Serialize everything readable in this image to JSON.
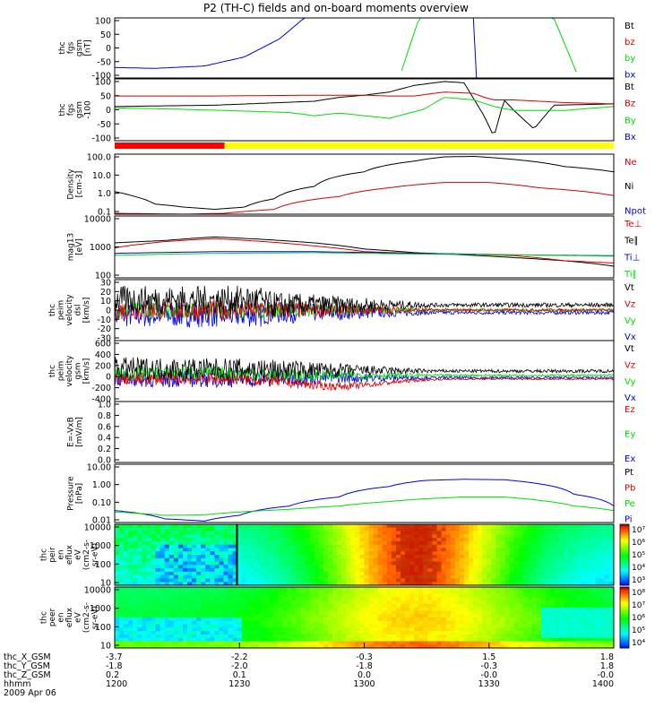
{
  "title": "P2 (TH-C) fields and on-board moments overview",
  "colors": {
    "black": "#000000",
    "red": "#d40000",
    "green": "#00dd00",
    "blue": "#0000dd",
    "yellow": "#ffff00",
    "bar_red": "#ff0000"
  },
  "chart_data": [
    {
      "id": "fgs",
      "type": "line",
      "ylabel": [
        "thc",
        "fgs",
        "gsm",
        "[nT]"
      ],
      "yticks": [
        "100",
        "50",
        "0",
        "-50",
        "-100"
      ],
      "ylim": [
        -100,
        100
      ],
      "yscale": "linear",
      "legend": [
        {
          "text": "Bt",
          "color": "black"
        },
        {
          "text": "bz",
          "color": "red"
        },
        {
          "text": "by",
          "color": "green"
        },
        {
          "text": "bx",
          "color": "blue"
        }
      ],
      "series": [
        {
          "name": "bx",
          "color": "blue",
          "x": [
            0,
            8,
            18,
            26,
            33,
            38,
            42,
            45,
            60,
            70,
            72.4,
            72.5,
            100
          ],
          "y": [
            -65,
            -68,
            -60,
            -30,
            30,
            100,
            100,
            100,
            100,
            100,
            100,
            -100,
            -100
          ]
        },
        {
          "name": "by",
          "color": "green",
          "x": [
            57,
            61,
            62,
            66,
            67,
            70,
            71,
            86,
            88,
            93
          ],
          "y": [
            -100,
            100,
            100,
            100,
            100,
            100,
            100,
            100,
            100,
            -100
          ]
        }
      ]
    },
    {
      "id": "fgs_dsl",
      "type": "line",
      "ylabel": [
        "thc",
        "fgs",
        "gsm",
        "-100"
      ],
      "yticks": [
        "100",
        "50",
        "0",
        "-50",
        "-100"
      ],
      "ylim": [
        -125,
        110
      ],
      "yscale": "linear",
      "legend": [
        {
          "text": "Bt",
          "color": "black"
        },
        {
          "text": "Bz",
          "color": "red"
        },
        {
          "text": "By",
          "color": "green"
        },
        {
          "text": "Bx",
          "color": "blue"
        }
      ],
      "series": [
        {
          "name": "Bt",
          "color": "black",
          "x": [
            0,
            20,
            40,
            45,
            50,
            55,
            60,
            66,
            70,
            74,
            76,
            78,
            80,
            84,
            88,
            100
          ],
          "y": [
            5,
            10,
            25,
            40,
            48,
            60,
            85,
            100,
            95,
            -30,
            -110,
            30,
            -10,
            -80,
            10,
            15
          ]
        },
        {
          "name": "Bz",
          "color": "red",
          "x": [
            0,
            20,
            40,
            50,
            55,
            60,
            66,
            72,
            74,
            76,
            80,
            90,
            100
          ],
          "y": [
            45,
            45,
            48,
            48,
            45,
            45,
            60,
            55,
            40,
            30,
            30,
            20,
            15
          ]
        },
        {
          "name": "By",
          "color": "green",
          "x": [
            0,
            12,
            22,
            35,
            40,
            45,
            55,
            62,
            66,
            72,
            76,
            80,
            90,
            100
          ],
          "y": [
            0,
            -5,
            -10,
            -18,
            -30,
            -20,
            -40,
            -5,
            40,
            30,
            5,
            -10,
            -10,
            5
          ]
        }
      ]
    },
    {
      "id": "mode_bar",
      "type": "bar",
      "segments": [
        {
          "from": 0,
          "to": 22,
          "color": "bar_red"
        },
        {
          "from": 22,
          "to": 100,
          "color": "yellow"
        }
      ]
    },
    {
      "id": "density",
      "type": "line",
      "ylabel": [
        "Density",
        "[cm-3]"
      ],
      "yticks": [
        "100.0",
        "10.0",
        "1.0",
        "0.1"
      ],
      "ylim": [
        0.08,
        200
      ],
      "yscale": "log",
      "legend": [
        {
          "text": "Ne",
          "color": "red"
        },
        {
          "text": "Ni",
          "color": "black"
        },
        {
          "text": "Npot",
          "color": "blue"
        }
      ],
      "series": [
        {
          "name": "Ni",
          "color": "black",
          "x": [
            0,
            4,
            8,
            14,
            20,
            26,
            32,
            40,
            50,
            60,
            66,
            72,
            80,
            90,
            100
          ],
          "y": [
            1.5,
            0.8,
            0.3,
            0.2,
            0.15,
            0.2,
            0.6,
            3,
            20,
            80,
            140,
            150,
            100,
            40,
            20
          ]
        },
        {
          "name": "Ne",
          "color": "red",
          "x": [
            0,
            14,
            22,
            32,
            45,
            55,
            66,
            75,
            85,
            100
          ],
          "y": [
            0.09,
            0.08,
            0.09,
            0.15,
            0.8,
            2.5,
            5,
            5,
            2.5,
            0.9
          ]
        }
      ]
    },
    {
      "id": "temp",
      "type": "line",
      "ylabel": [
        "mag13",
        "[eV]"
      ],
      "yticks": [
        "10000",
        "1000",
        "100"
      ],
      "ylim": [
        30,
        10000
      ],
      "yscale": "log",
      "legend": [
        {
          "text": "Te⊥",
          "color": "red"
        },
        {
          "text": "Te∥",
          "color": "black"
        },
        {
          "text": "Ti⊥",
          "color": "blue"
        },
        {
          "text": "Ti∥",
          "color": "green"
        }
      ],
      "series": [
        {
          "name": "Te∥",
          "color": "black",
          "x": [
            0,
            10,
            20,
            30,
            40,
            50,
            60,
            70,
            80,
            90,
            100
          ],
          "y": [
            800,
            1000,
            1400,
            1100,
            800,
            450,
            320,
            260,
            200,
            150,
            90
          ]
        },
        {
          "name": "Te⊥",
          "color": "red",
          "x": [
            0,
            10,
            20,
            30,
            40,
            50,
            60,
            70,
            80,
            90,
            100
          ],
          "y": [
            500,
            900,
            1200,
            900,
            600,
            350,
            300,
            280,
            240,
            150,
            120
          ]
        },
        {
          "name": "Ti⊥",
          "color": "blue",
          "x": [
            0,
            20,
            40,
            60,
            80,
            100
          ],
          "y": [
            300,
            350,
            350,
            300,
            260,
            240
          ]
        },
        {
          "name": "Ti∥",
          "color": "green",
          "x": [
            0,
            20,
            40,
            60,
            80,
            100
          ],
          "y": [
            250,
            300,
            320,
            280,
            260,
            230
          ]
        }
      ]
    },
    {
      "id": "vel_dsl",
      "type": "line",
      "ylabel": [
        "thc",
        "peim",
        "velocity",
        "dsl",
        "[km/s]"
      ],
      "yticks": [
        "30",
        "20",
        "10",
        "0",
        "-10",
        "-20",
        "-30"
      ],
      "ylim": [
        -30,
        30
      ],
      "yscale": "linear",
      "legend": [
        {
          "text": "Vt",
          "color": "black"
        },
        {
          "text": "Vz",
          "color": "red"
        },
        {
          "text": "Vy",
          "color": "green"
        },
        {
          "text": "Vx",
          "color": "blue"
        }
      ]
    },
    {
      "id": "vel_gsm",
      "type": "line",
      "ylabel": [
        "thc",
        "peim",
        "velocity",
        "gsm",
        "[km/s]"
      ],
      "yticks": [
        "600",
        "400",
        "200",
        "0",
        "-200",
        "-400"
      ],
      "ylim": [
        -400,
        600
      ],
      "yscale": "linear",
      "legend": [
        {
          "text": "Vt",
          "color": "black"
        },
        {
          "text": "Vz",
          "color": "red"
        },
        {
          "text": "Vy",
          "color": "green"
        },
        {
          "text": "Vx",
          "color": "blue"
        }
      ]
    },
    {
      "id": "efield",
      "type": "line",
      "ylabel": [
        "E=-VxB",
        "[mV/m]"
      ],
      "yticks": [
        "1.0",
        "0.8",
        "0.6",
        "0.4",
        "0.2",
        "0.0"
      ],
      "ylim": [
        0,
        1
      ],
      "yscale": "linear",
      "legend": [
        {
          "text": "Ez",
          "color": "red"
        },
        {
          "text": "Ey",
          "color": "green"
        },
        {
          "text": "Ex",
          "color": "blue"
        }
      ]
    },
    {
      "id": "pressure",
      "type": "line",
      "ylabel": [
        "Pressure",
        "[nPa]"
      ],
      "yticks": [
        "10.00",
        "1.00",
        "0.10",
        "0.01"
      ],
      "ylim": [
        0.004,
        30
      ],
      "yscale": "log",
      "legend": [
        {
          "text": "Pt",
          "color": "black"
        },
        {
          "text": "Pb",
          "color": "red"
        },
        {
          "text": "Pe",
          "color": "green"
        },
        {
          "text": "Pi",
          "color": "blue"
        }
      ],
      "series": [
        {
          "name": "Pi",
          "color": "blue",
          "x": [
            0,
            10,
            18,
            25,
            35,
            45,
            55,
            62,
            70,
            78,
            85,
            92,
            100
          ],
          "y": [
            0.025,
            0.007,
            0.005,
            0.012,
            0.05,
            0.2,
            1,
            2.5,
            3,
            2.8,
            1.5,
            0.3,
            0.05
          ]
        },
        {
          "name": "Pe",
          "color": "green",
          "x": [
            0,
            10,
            18,
            25,
            35,
            45,
            55,
            62,
            70,
            78,
            85,
            92,
            100
          ],
          "y": [
            0.02,
            0.012,
            0.013,
            0.02,
            0.03,
            0.05,
            0.1,
            0.15,
            0.2,
            0.2,
            0.12,
            0.05,
            0.025
          ]
        }
      ]
    },
    {
      "id": "ion_spec",
      "type": "heatmap",
      "ylabel": [
        "thc",
        "peir",
        "en",
        "eflux",
        "eV",
        "(cm2-s-",
        "sr-eV)"
      ],
      "yticks": [
        "10000",
        "1000",
        "100",
        "10"
      ],
      "colorbar_ticks": [
        "10⁷",
        "10⁶",
        "10⁵",
        "10⁴",
        "10³"
      ]
    },
    {
      "id": "ele_spec",
      "type": "heatmap",
      "ylabel": [
        "thc",
        "peer",
        "en",
        "eflux",
        "eV",
        "(cm2-s-",
        "sr-eV)"
      ],
      "yticks": [
        "10000",
        "1000",
        "100",
        "10"
      ],
      "colorbar_ticks": [
        "10⁸",
        "10⁷",
        "10⁶",
        "10⁵",
        "10⁴"
      ]
    }
  ],
  "axis": {
    "row_labels": [
      "thc_X_GSM",
      "thc_Y_GSM",
      "thc_Z_GSM",
      "hhmm"
    ],
    "date": "2009 Apr 06",
    "ticks": [
      {
        "x": 0,
        "vals": [
          "-3.7",
          "-1.8",
          "0.2",
          "1200"
        ]
      },
      {
        "x": 25,
        "vals": [
          "-2.2",
          "-2.0",
          "0.1",
          "1230"
        ]
      },
      {
        "x": 50,
        "vals": [
          "-0.3",
          "-1.8",
          "0.0",
          "1300"
        ]
      },
      {
        "x": 75,
        "vals": [
          "1.5",
          "-0.3",
          "-0.0",
          "1330"
        ]
      },
      {
        "x": 100,
        "vals": [
          "1.8",
          "1.8",
          "-0.0",
          "1400"
        ]
      }
    ]
  }
}
